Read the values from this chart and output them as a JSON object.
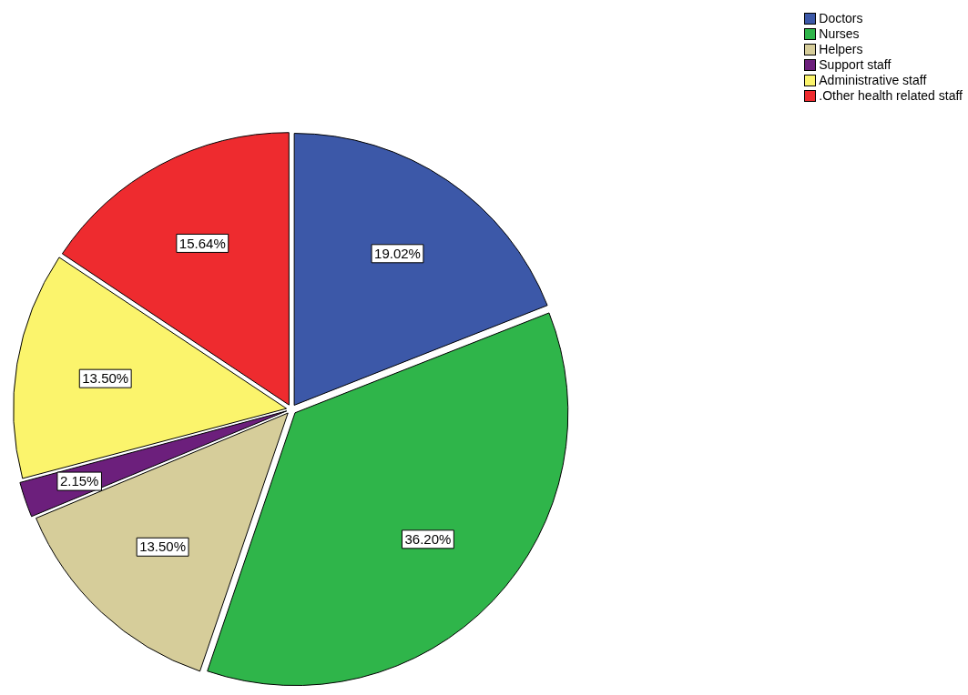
{
  "chart_data": {
    "type": "pie",
    "categories": [
      "Doctors",
      "Nurses",
      "Helpers",
      "Support staff",
      "Administrative staff",
      ".Other health related staff"
    ],
    "values": [
      19.02,
      36.2,
      13.5,
      2.15,
      13.5,
      15.64
    ],
    "colors": [
      "#3c58a8",
      "#2fb54a",
      "#d6cd9a",
      "#6c1f7c",
      "#fbf46c",
      "#ee2b2f"
    ],
    "value_labels": [
      "19.02%",
      "36.20%",
      "13.50%",
      "2.15%",
      "13.50%",
      "15.64%"
    ],
    "legend": "top right"
  }
}
